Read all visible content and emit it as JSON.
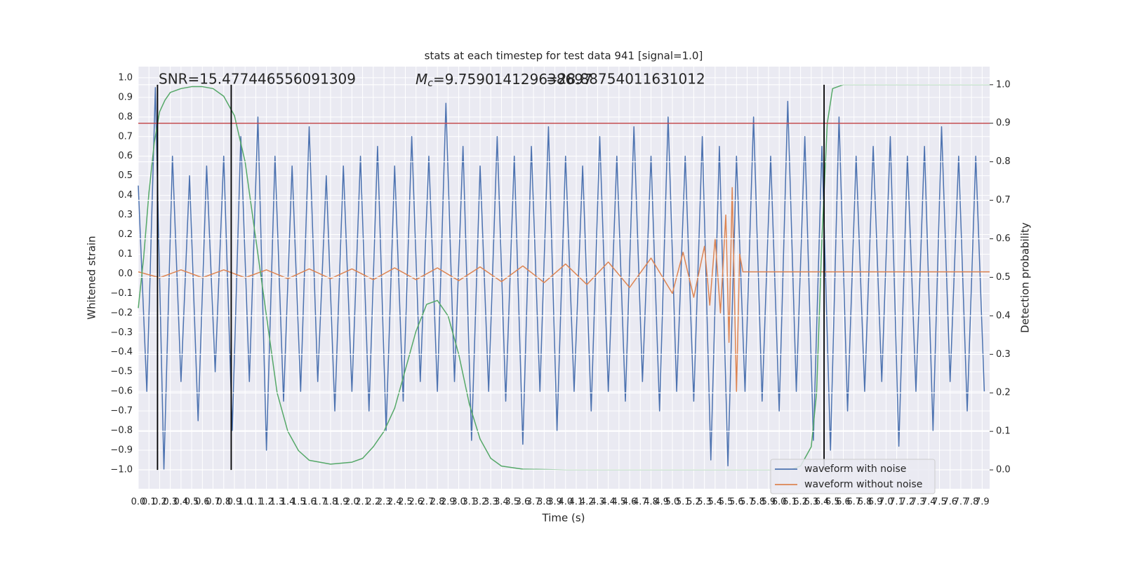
{
  "chart_data": {
    "type": "line",
    "title": "stats at each timestep for test data 941 [signal=1.0]",
    "xlabel": "Time (s)",
    "ylabel": "Whitened strain",
    "y2label": "Detection probability",
    "annotations": {
      "snr": "SNR=15.477446556091309",
      "mc_symbol": "M",
      "mc_subscript": "c",
      "mc_text": "=9.759014129638697",
      "overlap_text": "=28.88754011631012"
    },
    "grid": true,
    "legend": "lower right",
    "xlim": [
      0,
      7.97
    ],
    "ylim": [
      -1.097,
      1.057
    ],
    "y2lim": [
      -0.049,
      1.047
    ],
    "xticks": [
      {
        "value": 0,
        "label": "0.0"
      },
      {
        "value": 0.1,
        "label": "0.1"
      },
      {
        "value": 0.2,
        "label": "0.2"
      },
      {
        "value": 0.3,
        "label": "0.3"
      },
      {
        "value": 0.4,
        "label": "0.4"
      },
      {
        "value": 0.5,
        "label": "0.5"
      },
      {
        "value": 0.6,
        "label": "0.6"
      },
      {
        "value": 0.7,
        "label": "0.7"
      },
      {
        "value": 0.8,
        "label": "0.8"
      },
      {
        "value": 0.9,
        "label": "0.9"
      },
      {
        "value": 1,
        "label": "1.0"
      },
      {
        "value": 1.1,
        "label": "1.1"
      },
      {
        "value": 1.2,
        "label": "1.2"
      },
      {
        "value": 1.3,
        "label": "1.3"
      },
      {
        "value": 1.4,
        "label": "1.4"
      },
      {
        "value": 1.5,
        "label": "1.5"
      },
      {
        "value": 1.6,
        "label": "1.6"
      },
      {
        "value": 1.7,
        "label": "1.7"
      },
      {
        "value": 1.8,
        "label": "1.8"
      },
      {
        "value": 1.9,
        "label": "1.9"
      },
      {
        "value": 2,
        "label": "2.0"
      },
      {
        "value": 2.1,
        "label": "2.1"
      },
      {
        "value": 2.2,
        "label": "2.2"
      },
      {
        "value": 2.3,
        "label": "2.3"
      },
      {
        "value": 2.4,
        "label": "2.4"
      },
      {
        "value": 2.5,
        "label": "2.5"
      },
      {
        "value": 2.6,
        "label": "2.6"
      },
      {
        "value": 2.7,
        "label": "2.7"
      },
      {
        "value": 2.8,
        "label": "2.8"
      },
      {
        "value": 2.9,
        "label": "2.9"
      },
      {
        "value": 3,
        "label": "3.0"
      },
      {
        "value": 3.1,
        "label": "3.1"
      },
      {
        "value": 3.2,
        "label": "3.2"
      },
      {
        "value": 3.3,
        "label": "3.3"
      },
      {
        "value": 3.4,
        "label": "3.4"
      },
      {
        "value": 3.5,
        "label": "3.5"
      },
      {
        "value": 3.6,
        "label": "3.6"
      },
      {
        "value": 3.7,
        "label": "3.7"
      },
      {
        "value": 3.8,
        "label": "3.8"
      },
      {
        "value": 3.9,
        "label": "3.9"
      },
      {
        "value": 4,
        "label": "4.0"
      },
      {
        "value": 4.1,
        "label": "4.1"
      },
      {
        "value": 4.2,
        "label": "4.2"
      },
      {
        "value": 4.3,
        "label": "4.3"
      },
      {
        "value": 4.4,
        "label": "4.4"
      },
      {
        "value": 4.5,
        "label": "4.5"
      },
      {
        "value": 4.6,
        "label": "4.6"
      },
      {
        "value": 4.7,
        "label": "4.7"
      },
      {
        "value": 4.8,
        "label": "4.8"
      },
      {
        "value": 4.9,
        "label": "4.9"
      },
      {
        "value": 5,
        "label": "5.0"
      },
      {
        "value": 5.1,
        "label": "5.1"
      },
      {
        "value": 5.2,
        "label": "5.2"
      },
      {
        "value": 5.3,
        "label": "5.3"
      },
      {
        "value": 5.4,
        "label": "5.4"
      },
      {
        "value": 5.5,
        "label": "5.5"
      },
      {
        "value": 5.6,
        "label": "5.6"
      },
      {
        "value": 5.7,
        "label": "5.7"
      },
      {
        "value": 5.8,
        "label": "5.8"
      },
      {
        "value": 5.9,
        "label": "5.9"
      },
      {
        "value": 6,
        "label": "6.0"
      },
      {
        "value": 6.1,
        "label": "6.1"
      },
      {
        "value": 6.2,
        "label": "6.2"
      },
      {
        "value": 6.3,
        "label": "6.3"
      },
      {
        "value": 6.4,
        "label": "6.4"
      },
      {
        "value": 6.5,
        "label": "6.5"
      },
      {
        "value": 6.6,
        "label": "6.6"
      },
      {
        "value": 6.7,
        "label": "6.7"
      },
      {
        "value": 6.8,
        "label": "6.8"
      },
      {
        "value": 6.9,
        "label": "6.9"
      },
      {
        "value": 7,
        "label": "7.0"
      },
      {
        "value": 7.1,
        "label": "7.1"
      },
      {
        "value": 7.2,
        "label": "7.2"
      },
      {
        "value": 7.3,
        "label": "7.3"
      },
      {
        "value": 7.4,
        "label": "7.4"
      },
      {
        "value": 7.5,
        "label": "7.5"
      },
      {
        "value": 7.6,
        "label": "7.6"
      },
      {
        "value": 7.7,
        "label": "7.7"
      },
      {
        "value": 7.8,
        "label": "7.8"
      },
      {
        "value": 7.9,
        "label": "7.9"
      }
    ],
    "yticks": [
      {
        "value": 1,
        "label": "1.0"
      },
      {
        "value": 0.9,
        "label": "0.9"
      },
      {
        "value": 0.8,
        "label": "0.8"
      },
      {
        "value": 0.7,
        "label": "0.7"
      },
      {
        "value": 0.6,
        "label": "0.6"
      },
      {
        "value": 0.5,
        "label": "0.5"
      },
      {
        "value": 0.4,
        "label": "0.4"
      },
      {
        "value": 0.3,
        "label": "0.3"
      },
      {
        "value": 0.2,
        "label": "0.2"
      },
      {
        "value": 0.1,
        "label": "0.1"
      },
      {
        "value": 0,
        "label": "0.0"
      },
      {
        "value": -0.1,
        "label": "−0.1"
      },
      {
        "value": -0.2,
        "label": "−0.2"
      },
      {
        "value": -0.3,
        "label": "−0.3"
      },
      {
        "value": -0.4,
        "label": "−0.4"
      },
      {
        "value": -0.5,
        "label": "−0.5"
      },
      {
        "value": -0.6,
        "label": "−0.6"
      },
      {
        "value": -0.7,
        "label": "−0.7"
      },
      {
        "value": -0.8,
        "label": "−0.8"
      },
      {
        "value": -0.9,
        "label": "−0.9"
      },
      {
        "value": -1,
        "label": "−1.0"
      }
    ],
    "y2ticks": [
      {
        "value": 0,
        "label": "0.0"
      },
      {
        "value": 0.1,
        "label": "0.1"
      },
      {
        "value": 0.2,
        "label": "0.2"
      },
      {
        "value": 0.3,
        "label": "0.3"
      },
      {
        "value": 0.4,
        "label": "0.4"
      },
      {
        "value": 0.5,
        "label": "0.5"
      },
      {
        "value": 0.6,
        "label": "0.6"
      },
      {
        "value": 0.7,
        "label": "0.7"
      },
      {
        "value": 0.8,
        "label": "0.8"
      },
      {
        "value": 0.9,
        "label": "0.9"
      },
      {
        "value": 1,
        "label": "1.0"
      }
    ],
    "series": [
      {
        "name": "waveform with noise",
        "color": "#4c72b0",
        "x": [
          0,
          0.08,
          0.16,
          0.24,
          0.32,
          0.4,
          0.48,
          0.56,
          0.64,
          0.72,
          0.8,
          0.88,
          0.96,
          1.04,
          1.12,
          1.2,
          1.28,
          1.36,
          1.44,
          1.52,
          1.6,
          1.68,
          1.76,
          1.84,
          1.92,
          2,
          2.08,
          2.16,
          2.24,
          2.32,
          2.4,
          2.48,
          2.56,
          2.64,
          2.72,
          2.8,
          2.88,
          2.96,
          3.04,
          3.12,
          3.2,
          3.28,
          3.36,
          3.44,
          3.52,
          3.6,
          3.68,
          3.76,
          3.84,
          3.92,
          4,
          4.08,
          4.16,
          4.24,
          4.32,
          4.4,
          4.48,
          4.56,
          4.64,
          4.72,
          4.8,
          4.88,
          4.96,
          5.04,
          5.12,
          5.2,
          5.28,
          5.36,
          5.44,
          5.52,
          5.6,
          5.68,
          5.76,
          5.84,
          5.92,
          6,
          6.08,
          6.16,
          6.24,
          6.32,
          6.4,
          6.48,
          6.56,
          6.64,
          6.72,
          6.8,
          6.88,
          6.96,
          7.04,
          7.12,
          7.2,
          7.28,
          7.36,
          7.44,
          7.52,
          7.6,
          7.68,
          7.76,
          7.84,
          7.92
        ],
        "values": [
          0.45,
          -0.6,
          0.95,
          -1.0,
          0.6,
          -0.55,
          0.5,
          -0.75,
          0.55,
          -0.5,
          0.6,
          -0.8,
          0.7,
          -0.55,
          0.8,
          -0.9,
          0.6,
          -0.65,
          0.55,
          -0.6,
          0.75,
          -0.55,
          0.5,
          -0.7,
          0.55,
          -0.6,
          0.6,
          -0.7,
          0.65,
          -0.8,
          0.55,
          -0.65,
          0.7,
          -0.55,
          0.6,
          -0.6,
          0.87,
          -0.55,
          0.65,
          -0.85,
          0.55,
          -0.6,
          0.7,
          -0.65,
          0.6,
          -0.87,
          0.65,
          -0.6,
          0.75,
          -0.8,
          0.6,
          -0.6,
          0.55,
          -0.7,
          0.7,
          -0.6,
          0.6,
          -0.65,
          0.75,
          -0.55,
          0.6,
          -0.7,
          0.8,
          -0.6,
          0.6,
          -0.65,
          0.7,
          -0.95,
          0.65,
          -0.98,
          0.6,
          -0.6,
          0.8,
          -0.65,
          0.6,
          -0.7,
          0.88,
          -0.6,
          0.7,
          -0.85,
          0.65,
          -0.9,
          0.8,
          -0.7,
          0.6,
          -0.6,
          0.65,
          -0.55,
          0.7,
          -0.88,
          0.6,
          -0.6,
          0.65,
          -0.8,
          0.75,
          -0.55,
          0.6,
          -0.7,
          0.6,
          -0.6
        ]
      },
      {
        "name": "waveform without noise",
        "color": "#dd8452",
        "x": [
          0,
          0.2,
          0.4,
          0.6,
          0.8,
          1,
          1.2,
          1.4,
          1.6,
          1.8,
          2,
          2.2,
          2.4,
          2.6,
          2.8,
          3,
          3.2,
          3.4,
          3.6,
          3.8,
          4,
          4.2,
          4.4,
          4.6,
          4.8,
          5,
          5.1,
          5.2,
          5.3,
          5.35,
          5.4,
          5.45,
          5.5,
          5.53,
          5.56,
          5.6,
          5.63,
          5.66,
          7.97
        ],
        "values": [
          0.01,
          -0.02,
          0.02,
          -0.02,
          0.02,
          -0.02,
          0.02,
          -0.025,
          0.025,
          -0.025,
          0.025,
          -0.03,
          0.03,
          -0.03,
          0.03,
          -0.035,
          0.035,
          -0.04,
          0.04,
          -0.045,
          0.05,
          -0.055,
          0.06,
          -0.07,
          0.08,
          -0.1,
          0.11,
          -0.12,
          0.14,
          -0.16,
          0.18,
          -0.2,
          0.3,
          -0.35,
          0.44,
          -0.6,
          0.1,
          0.01,
          0.01
        ]
      },
      {
        "color": "#55a868",
        "axis": "y2",
        "x": [
          0,
          0.05,
          0.1,
          0.15,
          0.2,
          0.25,
          0.3,
          0.4,
          0.5,
          0.6,
          0.7,
          0.8,
          0.9,
          1,
          1.1,
          1.2,
          1.3,
          1.4,
          1.5,
          1.6,
          1.8,
          2,
          2.1,
          2.2,
          2.3,
          2.4,
          2.5,
          2.6,
          2.7,
          2.8,
          2.9,
          3,
          3.1,
          3.2,
          3.3,
          3.4,
          3.6,
          4,
          5,
          6.1,
          6.2,
          6.3,
          6.35,
          6.4,
          6.45,
          6.5,
          6.6,
          7.97
        ],
        "values": [
          0.42,
          0.55,
          0.72,
          0.85,
          0.93,
          0.96,
          0.98,
          0.99,
          0.995,
          0.995,
          0.99,
          0.97,
          0.92,
          0.8,
          0.6,
          0.4,
          0.2,
          0.1,
          0.05,
          0.025,
          0.015,
          0.02,
          0.03,
          0.06,
          0.1,
          0.16,
          0.26,
          0.36,
          0.43,
          0.44,
          0.4,
          0.3,
          0.17,
          0.08,
          0.03,
          0.01,
          0.002,
          0,
          0,
          0,
          0.01,
          0.06,
          0.2,
          0.6,
          0.9,
          0.99,
          1,
          1
        ]
      }
    ],
    "threshold": {
      "value": 0.9,
      "color": "#c44e52"
    },
    "vlines": {
      "x": [
        0.18,
        0.87,
        6.42
      ],
      "range": [
        0,
        1
      ],
      "color": "#000000"
    }
  }
}
